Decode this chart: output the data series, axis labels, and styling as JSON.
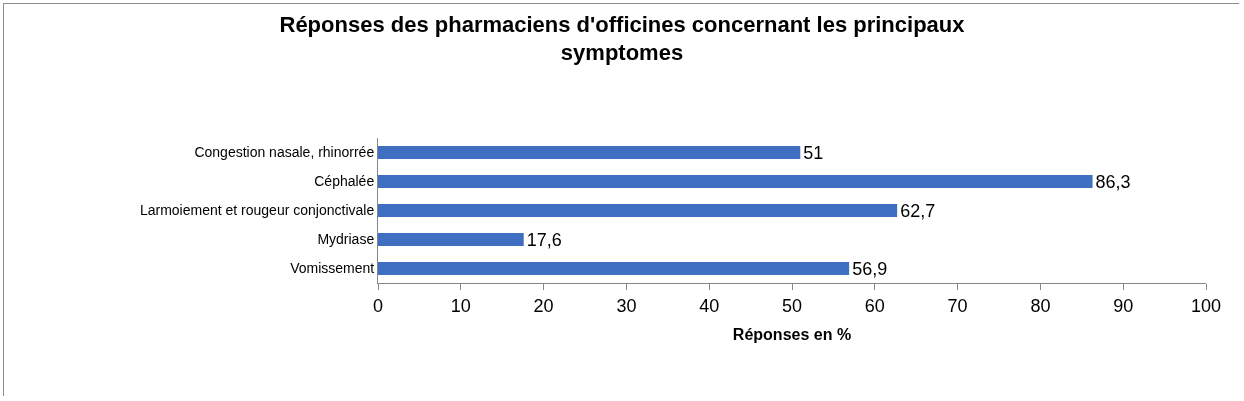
{
  "chart_data": {
    "type": "bar",
    "orientation": "horizontal",
    "title": "Réponses des pharmaciens d'officines concernant les principaux symptomes",
    "xlabel": "Réponses en %",
    "categories": [
      "Congestion nasale, rhinorrée",
      "Céphalée",
      "Larmoiement et rougeur conjonctivale",
      "Mydriase",
      "Vomissement"
    ],
    "values": [
      51,
      86.3,
      62.7,
      17.6,
      56.9
    ],
    "value_labels": [
      "51",
      "86,3",
      "62,7",
      "17,6",
      "56,9"
    ],
    "color": "#3f6fc0",
    "xlim": [
      0,
      100
    ],
    "xticks": [
      0,
      10,
      20,
      30,
      40,
      50,
      60,
      70,
      80,
      90,
      100
    ],
    "grid": false
  }
}
